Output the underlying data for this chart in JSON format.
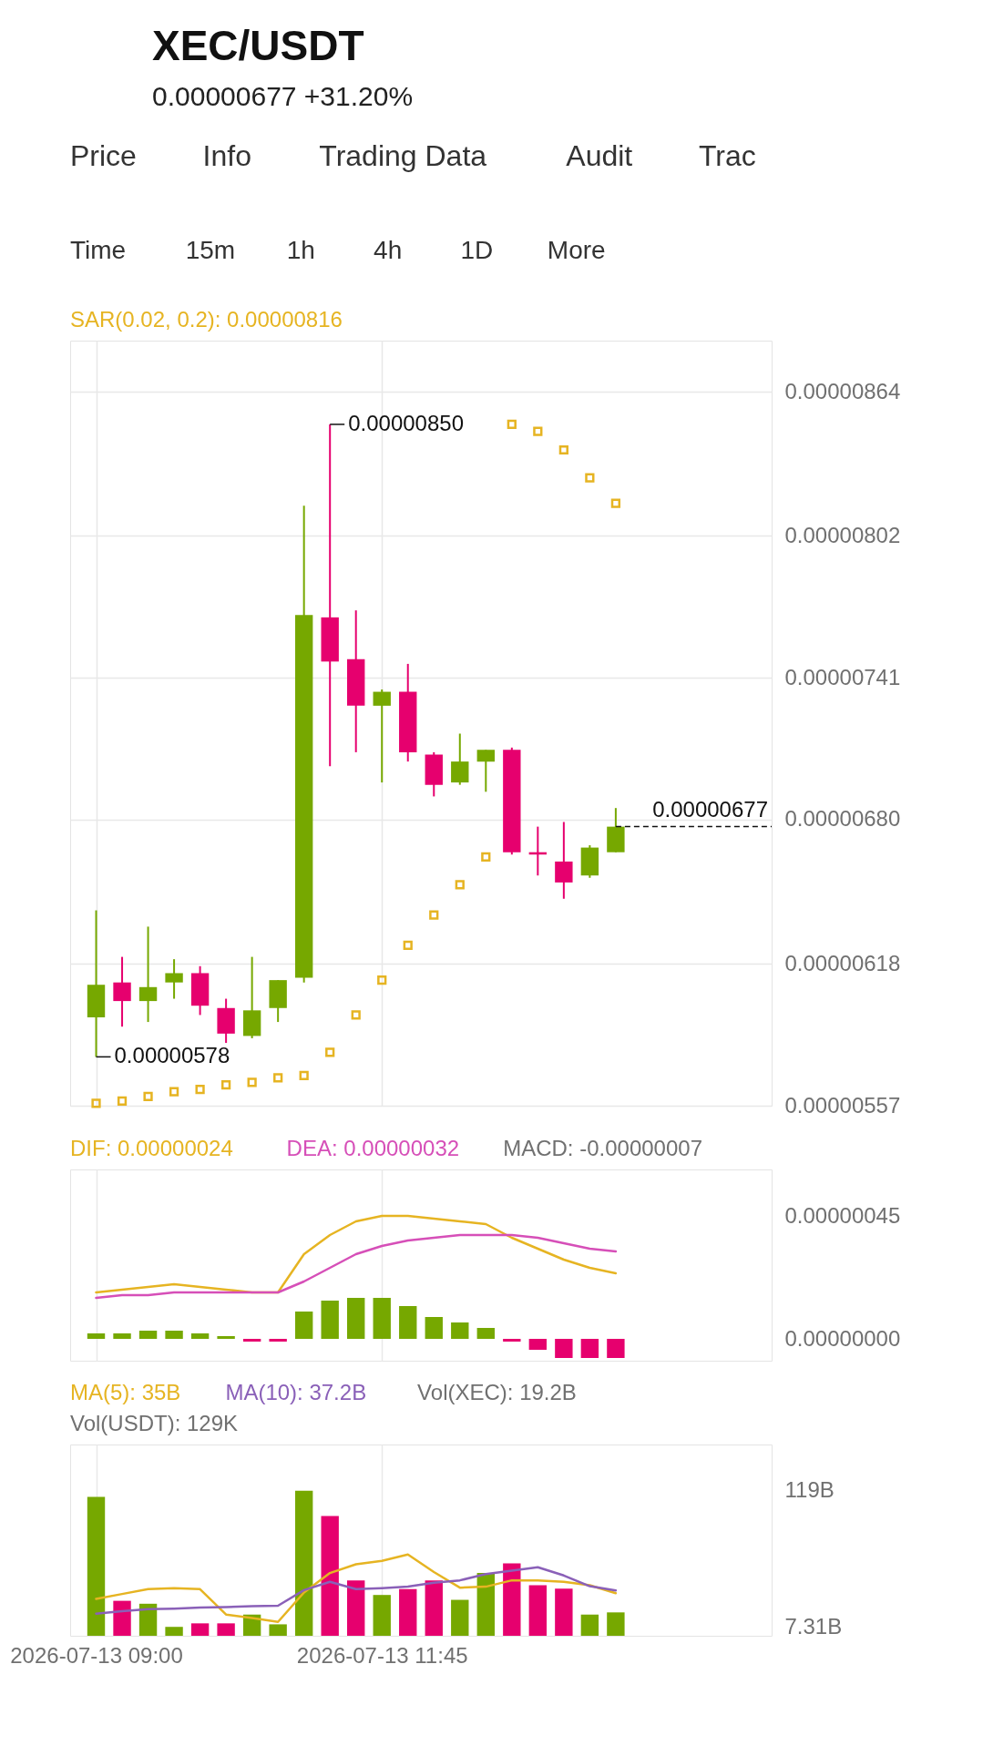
{
  "chart_data": [
    {
      "type": "other",
      "title": "XEC/USDT",
      "subtitle": "0.00000677 +31.20%",
      "annotations": [
        "Price",
        "Info",
        "Trading Data",
        "Audit",
        "Trac"
      ]
    },
    {
      "type": "other",
      "annotations": [
        "Time",
        "15m",
        "1h",
        "4h",
        "1D",
        "More"
      ]
    },
    {
      "type": "candlestick",
      "x": [
        "2026-07-13T09:00",
        "2026-07-13T09:15",
        "2026-07-13T09:30",
        "2026-07-13T09:45",
        "2026-07-13T10:00",
        "2026-07-13T10:15",
        "2026-07-13T10:30",
        "2026-07-13T10:45",
        "2026-07-13T11:00",
        "2026-07-13T11:15",
        "2026-07-13T11:30",
        "2026-07-13T11:45",
        "2026-07-13T12:00",
        "2026-07-13T12:15",
        "2026-07-13T12:30",
        "2026-07-13T12:45",
        "2026-07-13T13:00",
        "2026-07-13T13:15",
        "2026-07-13T13:30",
        "2026-07-13T13:45",
        "2026-07-13T14:00"
      ],
      "ohlc": [
        [
          5.95e-06,
          6.41e-06,
          5.78e-06,
          6.09e-06
        ],
        [
          6.1e-06,
          6.21e-06,
          5.91e-06,
          6.02e-06
        ],
        [
          6.02e-06,
          6.34e-06,
          5.93e-06,
          6.08e-06
        ],
        [
          6.1e-06,
          6.2e-06,
          6.03e-06,
          6.14e-06
        ],
        [
          6.14e-06,
          6.17e-06,
          5.96e-06,
          6e-06
        ],
        [
          5.99e-06,
          6.03e-06,
          5.84e-06,
          5.88e-06
        ],
        [
          5.87e-06,
          6.21e-06,
          5.86e-06,
          5.98e-06
        ],
        [
          5.99e-06,
          6.11e-06,
          5.93e-06,
          6.11e-06
        ],
        [
          6.12e-06,
          8.15e-06,
          6.1e-06,
          7.68e-06
        ],
        [
          7.67e-06,
          8.5e-06,
          7.03e-06,
          7.48e-06
        ],
        [
          7.49e-06,
          7.7e-06,
          7.09e-06,
          7.29e-06
        ],
        [
          7.29e-06,
          7.36e-06,
          6.96e-06,
          7.35e-06
        ],
        [
          7.35e-06,
          7.47e-06,
          7.05e-06,
          7.09e-06
        ],
        [
          7.08e-06,
          7.09e-06,
          6.9e-06,
          6.95e-06
        ],
        [
          6.96e-06,
          7.17e-06,
          6.95e-06,
          7.05e-06
        ],
        [
          7.05e-06,
          7.1e-06,
          6.92e-06,
          7.1e-06
        ],
        [
          7.1e-06,
          7.11e-06,
          6.65e-06,
          6.66e-06
        ],
        [
          6.66e-06,
          6.77e-06,
          6.56e-06,
          6.65e-06
        ],
        [
          6.62e-06,
          6.79e-06,
          6.46e-06,
          6.53e-06
        ],
        [
          6.56e-06,
          6.69e-06,
          6.55e-06,
          6.68e-06
        ],
        [
          6.66e-06,
          6.85e-06,
          6.66e-06,
          6.77e-06
        ]
      ],
      "colors": [
        "#76a800",
        "#e6006e",
        "#76a800",
        "#76a800",
        "#e6006e",
        "#e6006e",
        "#76a800",
        "#76a800",
        "#76a800",
        "#e6006e",
        "#e6006e",
        "#76a800",
        "#e6006e",
        "#e6006e",
        "#76a800",
        "#76a800",
        "#e6006e",
        "#e6006e",
        "#e6006e",
        "#76a800",
        "#76a800"
      ],
      "series": [
        {
          "name": "SAR(0.02, 0.2): 0.00000816",
          "type": "scatter",
          "marker": "square",
          "color": "#e6b422",
          "values": [
            5.58e-06,
            5.59e-06,
            5.61e-06,
            5.63e-06,
            5.64e-06,
            5.66e-06,
            5.67e-06,
            5.69e-06,
            5.7e-06,
            5.8e-06,
            5.96e-06,
            6.11e-06,
            6.26e-06,
            6.39e-06,
            6.52e-06,
            6.64e-06,
            8.5e-06,
            8.47e-06,
            8.39e-06,
            8.27e-06,
            8.16e-06
          ]
        }
      ],
      "xlim": [
        "2026-07-13T08:45",
        "2026-07-13T15:30"
      ],
      "xticks": [
        "2026-07-13T09:00",
        "2026-07-13T11:45"
      ],
      "ylim": [
        5.57e-06,
        8.86e-06
      ],
      "yticks": [
        {
          "value": 8.64e-06,
          "label": "0.00000864"
        },
        {
          "value": 8.02e-06,
          "label": "0.00000802"
        },
        {
          "value": 7.41e-06,
          "label": "0.00000741"
        },
        {
          "value": 6.8e-06,
          "label": "0.00000680"
        },
        {
          "value": 6.18e-06,
          "label": "0.00000618"
        },
        {
          "value": 5.57e-06,
          "label": "0.00000557"
        }
      ],
      "ref_lines": [
        {
          "axis": "y",
          "value": 6.77e-06,
          "label": "0.00000677",
          "line_style": "dashed"
        }
      ],
      "annotations": [
        {
          "text": "0.00000850",
          "x": "2026-07-13T11:15",
          "y": 8.5e-06
        },
        {
          "text": "0.00000578",
          "x": "2026-07-13T09:00",
          "y": 5.78e-06
        }
      ],
      "grid": true,
      "legend": "top left",
      "tick_labels": "y"
    },
    {
      "type": "bar",
      "x": [
        "2026-07-13T09:00",
        "2026-07-13T09:15",
        "2026-07-13T09:30",
        "2026-07-13T09:45",
        "2026-07-13T10:00",
        "2026-07-13T10:15",
        "2026-07-13T10:30",
        "2026-07-13T10:45",
        "2026-07-13T11:00",
        "2026-07-13T11:15",
        "2026-07-13T11:30",
        "2026-07-13T11:45",
        "2026-07-13T12:00",
        "2026-07-13T12:15",
        "2026-07-13T12:30",
        "2026-07-13T12:45",
        "2026-07-13T13:00",
        "2026-07-13T13:15",
        "2026-07-13T13:30",
        "2026-07-13T13:45",
        "2026-07-13T14:00"
      ],
      "series": [
        {
          "type": "bar",
          "colors": [
            "#76a800",
            "#76a800",
            "#76a800",
            "#76a800",
            "#76a800",
            "#76a800",
            "#e6006e",
            "#e6006e",
            "#76a800",
            "#76a800",
            "#76a800",
            "#76a800",
            "#76a800",
            "#76a800",
            "#76a800",
            "#76a800",
            "#e6006e",
            "#e6006e",
            "#e6006e",
            "#e6006e",
            "#e6006e"
          ],
          "values": [
            2e-08,
            2e-08,
            3e-08,
            3e-08,
            2e-08,
            1e-08,
            -1e-08,
            -1e-08,
            1e-07,
            1.4e-07,
            1.5e-07,
            1.5e-07,
            1.2e-07,
            8e-08,
            6e-08,
            4e-08,
            -1e-08,
            -4e-08,
            -7e-08,
            -7e-08,
            -7e-08
          ]
        },
        {
          "name": "DIF: 0.00000024",
          "type": "line",
          "color": "#e6b422",
          "line_style": "solid",
          "values": [
            1.7e-07,
            1.8e-07,
            1.9e-07,
            2e-07,
            1.9e-07,
            1.8e-07,
            1.7e-07,
            1.7e-07,
            3.1e-07,
            3.8e-07,
            4.3e-07,
            4.5e-07,
            4.5e-07,
            4.4e-07,
            4.3e-07,
            4.2e-07,
            3.7e-07,
            3.3e-07,
            2.9e-07,
            2.6e-07,
            2.4e-07
          ]
        },
        {
          "name": "DEA: 0.00000032",
          "type": "line",
          "color": "#d64fb8",
          "line_style": "solid",
          "values": [
            1.5e-07,
            1.6e-07,
            1.6e-07,
            1.7e-07,
            1.7e-07,
            1.7e-07,
            1.7e-07,
            1.7e-07,
            2.1e-07,
            2.6e-07,
            3.1e-07,
            3.4e-07,
            3.6e-07,
            3.7e-07,
            3.8e-07,
            3.8e-07,
            3.8e-07,
            3.7e-07,
            3.5e-07,
            3.3e-07,
            3.2e-07
          ]
        }
      ],
      "annotations": [
        "MACD: -0.00000007"
      ],
      "xlim": [
        "2026-07-13T08:45",
        "2026-07-13T15:30"
      ],
      "xticks": [
        "2026-07-13T09:00",
        "2026-07-13T11:45"
      ],
      "ylim": [
        -8e-08,
        6.2e-07
      ],
      "yticks": [
        {
          "value": 4.5e-07,
          "label": "0.00000045"
        },
        {
          "value": 0,
          "label": "0.00000000"
        }
      ],
      "grid": "x",
      "legend": "top left",
      "tick_labels": "y"
    },
    {
      "type": "bar",
      "x": [
        "2026-07-13T09:00",
        "2026-07-13T09:15",
        "2026-07-13T09:30",
        "2026-07-13T09:45",
        "2026-07-13T10:00",
        "2026-07-13T10:15",
        "2026-07-13T10:30",
        "2026-07-13T10:45",
        "2026-07-13T11:00",
        "2026-07-13T11:15",
        "2026-07-13T11:30",
        "2026-07-13T11:45",
        "2026-07-13T12:00",
        "2026-07-13T12:15",
        "2026-07-13T12:30",
        "2026-07-13T12:45",
        "2026-07-13T13:00",
        "2026-07-13T13:15",
        "2026-07-13T13:30",
        "2026-07-13T13:45",
        "2026-07-13T14:00"
      ],
      "series": [
        {
          "type": "bar",
          "colors": [
            "#76a800",
            "#e6006e",
            "#76a800",
            "#76a800",
            "#e6006e",
            "#e6006e",
            "#76a800",
            "#76a800",
            "#76a800",
            "#e6006e",
            "#e6006e",
            "#76a800",
            "#e6006e",
            "#e6006e",
            "#76a800",
            "#76a800",
            "#e6006e",
            "#e6006e",
            "#e6006e",
            "#76a800",
            "#76a800"
          ],
          "values": [
            114,
            28.7,
            26.3,
            7.31,
            10.2,
            10.2,
            17.4,
            9.4,
            119,
            98.4,
            45.5,
            33.5,
            38.3,
            45.5,
            29.5,
            51.5,
            59.5,
            41.5,
            38.7,
            17.4,
            19.2
          ]
        },
        {
          "name": "MA(5): 35B",
          "type": "line",
          "color": "#e6b422",
          "line_style": "solid",
          "values": [
            30.3,
            34.3,
            38.3,
            39.1,
            38.3,
            17.4,
            14.6,
            11.4,
            35.5,
            51.5,
            58.7,
            61.5,
            66.7,
            52.3,
            39.5,
            40.3,
            45.5,
            45.5,
            44.3,
            41.5,
            35
          ]
        },
        {
          "name": "MA(10): 37.2B",
          "type": "line",
          "color": "#8a60b8",
          "line_style": "solid",
          "values": [
            18.2,
            20.2,
            21.9,
            22.3,
            23.1,
            23.5,
            24.3,
            24.7,
            37.5,
            44.3,
            38.3,
            39.1,
            40.3,
            43.5,
            45.5,
            50.7,
            53.5,
            56.3,
            49.5,
            40.7,
            37.2
          ]
        }
      ],
      "annotations": [
        "Vol(XEC): 19.2B",
        "Vol(USDT): 129K"
      ],
      "xlim": [
        "2026-07-13T08:45",
        "2026-07-13T15:30"
      ],
      "xticks": [
        {
          "value": "2026-07-13T09:00",
          "label": "2026-07-13 09:00"
        },
        {
          "value": "2026-07-13T11:45",
          "label": "2026-07-13 11:45"
        }
      ],
      "ylim": [
        0,
        157
      ],
      "yticks": [
        {
          "value": 119,
          "label": "119B"
        },
        {
          "value": 7.31,
          "label": "7.31B"
        }
      ],
      "grid": "x",
      "legend": "top left"
    }
  ]
}
